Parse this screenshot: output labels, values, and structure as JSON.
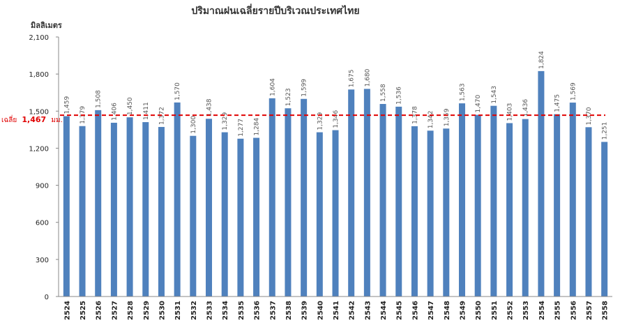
{
  "chart_data": {
    "type": "bar",
    "title": "ปริมาณฝนเฉลี่ยรายปีบริเวณประเทศไทย",
    "ylabel": "มิลลิเมตร",
    "xlabel": "",
    "ylim": [
      0,
      2100
    ],
    "yticks": [
      "0",
      "300",
      "600",
      "900",
      "1,200",
      "1,500",
      "1,800",
      "2,100"
    ],
    "grid": false,
    "legend": "none",
    "bar_color": "#4f81bd",
    "average": {
      "value": 1467,
      "prefix": "เฉลี่ย",
      "value_text": "1,467",
      "unit": "มม.",
      "color": "#e00000"
    },
    "categories": [
      "2524",
      "2525",
      "2526",
      "2527",
      "2528",
      "2529",
      "2530",
      "2531",
      "2532",
      "2533",
      "2534",
      "2535",
      "2536",
      "2537",
      "2538",
      "2539",
      "2540",
      "2541",
      "2542",
      "2543",
      "2544",
      "2545",
      "2546",
      "2547",
      "2548",
      "2549",
      "2550",
      "2551",
      "2552",
      "2553",
      "2554",
      "2555",
      "2556",
      "2557",
      "2558"
    ],
    "values": [
      1459,
      1379,
      1508,
      1406,
      1450,
      1411,
      1372,
      1570,
      1300,
      1438,
      1329,
      1277,
      1284,
      1604,
      1523,
      1599,
      1329,
      1346,
      1675,
      1680,
      1558,
      1536,
      1378,
      1342,
      1359,
      1563,
      1470,
      1543,
      1403,
      1436,
      1824,
      1475,
      1569,
      1370,
      1251
    ],
    "value_labels": [
      "1,459",
      "1,379",
      "1,508",
      "1,406",
      "1,450",
      "1,411",
      "1,372",
      "1,570",
      "1,300",
      "1,438",
      "1,329",
      "1,277",
      "1,284",
      "1,604",
      "1,523",
      "1,599",
      "1,329",
      "1,346",
      "1,675",
      "1,680",
      "1,558",
      "1,536",
      "1,378",
      "1,342",
      "1,359",
      "1,563",
      "1,470",
      "1,543",
      "1,403",
      "1,436",
      "1,824",
      "1,475",
      "1,569",
      "1,370",
      "1,251"
    ]
  }
}
